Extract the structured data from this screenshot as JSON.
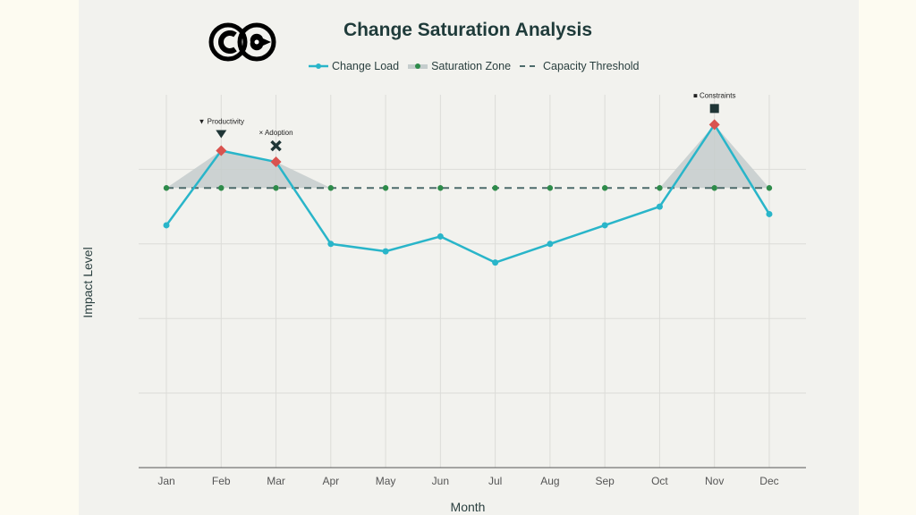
{
  "chart_data": {
    "type": "line",
    "title": "Change Saturation Analysis",
    "xlabel": "Month",
    "ylabel": "Impact Level",
    "categories": [
      "Jan",
      "Feb",
      "Mar",
      "Apr",
      "May",
      "Jun",
      "Jul",
      "Aug",
      "Sep",
      "Oct",
      "Nov",
      "Dec"
    ],
    "ylim": [
      0,
      10
    ],
    "grid": true,
    "legend_position": "top",
    "series": [
      {
        "name": "Change Load",
        "values": [
          6.5,
          8.5,
          8.2,
          6.0,
          5.8,
          6.2,
          5.5,
          6.0,
          6.5,
          7.0,
          9.2,
          6.8
        ],
        "color": "#29b5c9"
      },
      {
        "name": "Saturation Zone",
        "color": "#2e8b4a",
        "fill": "#c5cdcd"
      },
      {
        "name": "Capacity Threshold",
        "value": 7.5,
        "color": "#4d6b6b",
        "style": "dashed"
      }
    ],
    "highlighted_points": [
      "Feb",
      "Mar",
      "Nov"
    ],
    "highlight_color": "#d9534f",
    "annotations": [
      {
        "month": "Feb",
        "label": "▼ Productivity",
        "marker": "triangle-down"
      },
      {
        "month": "Mar",
        "label": "× Adoption",
        "marker": "x"
      },
      {
        "month": "Nov",
        "label": "■ Constraints",
        "marker": "square"
      }
    ]
  },
  "logo": "CC"
}
